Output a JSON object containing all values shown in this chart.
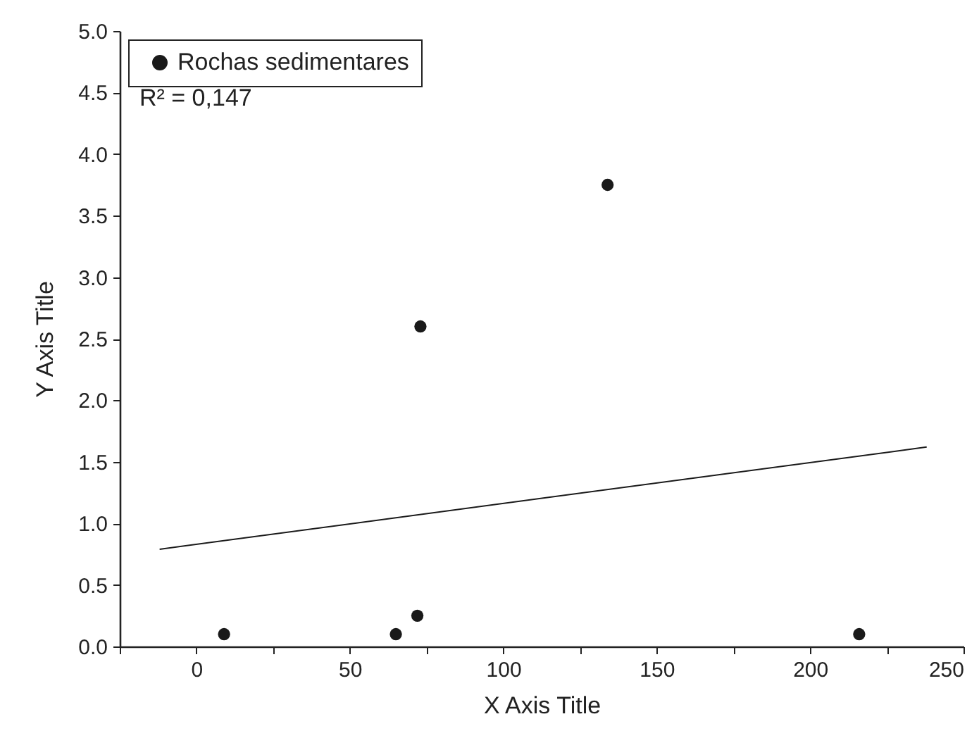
{
  "chart_data": {
    "type": "scatter",
    "xlabel": "X Axis Title",
    "ylabel": "Y Axis Title",
    "series": [
      {
        "name": "Rochas sedimentares",
        "color": "#1a1a1a",
        "x": [
          9,
          65,
          72,
          73,
          134,
          216
        ],
        "values": [
          0.1,
          0.1,
          0.25,
          2.6,
          3.75,
          0.1
        ]
      },
      {
        "type": "line",
        "marker": "none",
        "color": "#1a1a1a",
        "x": [
          -12,
          238
        ],
        "values": [
          0.79,
          1.62
        ]
      }
    ],
    "annotations": [
      "R² = 0,147"
    ],
    "xlim": [
      -25,
      250
    ],
    "xticks": [
      {
        "value": -25,
        "label": null
      },
      0,
      {
        "value": 25,
        "label": null
      },
      50,
      {
        "value": 75,
        "label": null
      },
      100,
      {
        "value": 125,
        "label": null
      },
      150,
      {
        "value": 175,
        "label": null
      },
      200,
      {
        "value": 225,
        "label": null
      },
      250
    ],
    "ylim": [
      0,
      5
    ],
    "yticks": [
      {
        "value": 0,
        "label": "0.0"
      },
      {
        "value": 0.5,
        "label": "0.5"
      },
      {
        "value": 1,
        "label": "1.0"
      },
      {
        "value": 1.5,
        "label": "1.5"
      },
      {
        "value": 2,
        "label": "2.0"
      },
      {
        "value": 2.5,
        "label": "2.5"
      },
      {
        "value": 3,
        "label": "3.0"
      },
      {
        "value": 3.5,
        "label": "3.5"
      },
      {
        "value": 4,
        "label": "4.0"
      },
      {
        "value": 4.5,
        "label": "4.5"
      },
      {
        "value": 5,
        "label": "5.0"
      }
    ],
    "grid": false,
    "legend": "top left",
    "marker": "circle",
    "line_style": "solid"
  }
}
